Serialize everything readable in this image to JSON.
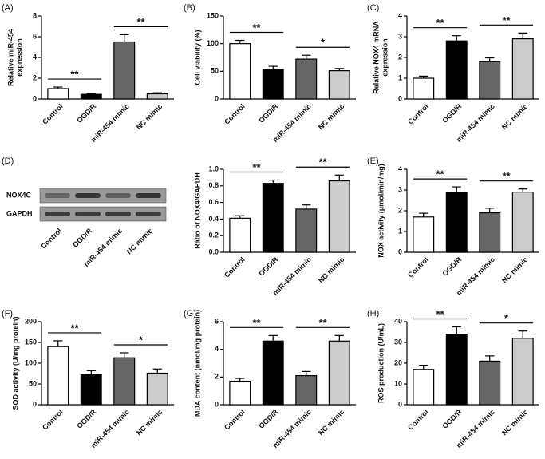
{
  "chart_data": [
    {
      "type": "bar",
      "panel": "(A)",
      "ylabel": [
        "Relative miR-454",
        "expression"
      ],
      "categories": [
        "Control",
        "OGD/R",
        "miR-454 mimic",
        "NC mimic"
      ],
      "values": [
        1.0,
        0.45,
        5.5,
        0.5
      ],
      "errors": [
        0.15,
        0.08,
        0.7,
        0.1
      ],
      "colors": [
        "#ffffff",
        "#000000",
        "#666666",
        "#cccccc"
      ],
      "ylim": [
        0,
        8
      ],
      "yticks": [
        0,
        2,
        4,
        6,
        8
      ],
      "annotations": [
        "**",
        "**"
      ]
    },
    {
      "type": "bar",
      "panel": "(B)",
      "ylabel": "Cell viability (%)",
      "categories": [
        "Control",
        "OGD/R",
        "miR-454 mimic",
        "NC mimic"
      ],
      "values": [
        100,
        53,
        72,
        51
      ],
      "errors": [
        6,
        6,
        7,
        4
      ],
      "colors": [
        "#ffffff",
        "#000000",
        "#666666",
        "#cccccc"
      ],
      "ylim": [
        0,
        150
      ],
      "yticks": [
        0,
        50,
        100,
        150
      ],
      "annotations": [
        "**",
        "*"
      ]
    },
    {
      "type": "bar",
      "panel": "(C)",
      "ylabel": [
        "Relative NOX4 mRNA",
        "expression"
      ],
      "categories": [
        "Control",
        "OGD/R",
        "miR-454 mimic",
        "NC mimic"
      ],
      "values": [
        1.0,
        2.8,
        1.8,
        2.9
      ],
      "errors": [
        0.1,
        0.25,
        0.18,
        0.28
      ],
      "colors": [
        "#ffffff",
        "#000000",
        "#666666",
        "#cccccc"
      ],
      "ylim": [
        0,
        4
      ],
      "yticks": [
        0,
        1,
        2,
        3,
        4
      ],
      "annotations": [
        "**",
        "**"
      ]
    },
    {
      "type": "bar",
      "panel": "(D)",
      "blot_rows": [
        "NOX4C",
        "GAPDH"
      ],
      "ylabel": "Ratio of NOX4/GAPDH",
      "categories": [
        "Control",
        "OGD/R",
        "miR-454 mimic",
        "NC mimic"
      ],
      "values": [
        0.41,
        0.83,
        0.52,
        0.86
      ],
      "errors": [
        0.03,
        0.04,
        0.05,
        0.07
      ],
      "colors": [
        "#ffffff",
        "#000000",
        "#666666",
        "#cccccc"
      ],
      "ylim": [
        0,
        1
      ],
      "yticks": [
        {
          "value": 0,
          "label": "0.0"
        },
        0.2,
        0.4,
        0.6,
        0.8,
        {
          "value": 1,
          "label": "1.0"
        }
      ],
      "annotations": [
        "**",
        "**"
      ]
    },
    {
      "type": "bar",
      "panel": "(E)",
      "ylabel": "NOX activity (μmol/min/mg)",
      "categories": [
        "Control",
        "OGD/R",
        "miR-454 mimic",
        "NC mimic"
      ],
      "values": [
        1.7,
        2.9,
        1.9,
        2.9
      ],
      "errors": [
        0.18,
        0.25,
        0.22,
        0.15
      ],
      "colors": [
        "#ffffff",
        "#000000",
        "#666666",
        "#cccccc"
      ],
      "ylim": [
        0,
        4
      ],
      "yticks": [
        0,
        1,
        2,
        3,
        4
      ],
      "annotations": [
        "**",
        "**"
      ]
    },
    {
      "type": "bar",
      "panel": "(F)",
      "ylabel": "SOD activity (U/mg protein)",
      "categories": [
        "Control",
        "OGD/R",
        "miR-454 mimic",
        "NC mimic"
      ],
      "values": [
        140,
        72,
        113,
        76
      ],
      "errors": [
        14,
        10,
        12,
        10
      ],
      "colors": [
        "#ffffff",
        "#000000",
        "#666666",
        "#cccccc"
      ],
      "ylim": [
        0,
        200
      ],
      "yticks": [
        0,
        50,
        100,
        150,
        200
      ],
      "annotations": [
        "**",
        "*"
      ]
    },
    {
      "type": "bar",
      "panel": "(G)",
      "ylabel": "MDA content (nmol/mg protein)",
      "categories": [
        "Control",
        "OGD/R",
        "miR-454 mimic",
        "NC mimic"
      ],
      "values": [
        1.7,
        4.6,
        2.1,
        4.6
      ],
      "errors": [
        0.2,
        0.4,
        0.3,
        0.4
      ],
      "colors": [
        "#ffffff",
        "#000000",
        "#666666",
        "#cccccc"
      ],
      "ylim": [
        0,
        6
      ],
      "yticks": [
        0,
        2,
        4,
        6
      ],
      "annotations": [
        "**",
        "**"
      ]
    },
    {
      "type": "bar",
      "panel": "(H)",
      "ylabel": "ROS production (U/mL)",
      "categories": [
        "Control",
        "OGD/R",
        "miR-454 mimic",
        "NC mimic"
      ],
      "values": [
        17,
        34,
        21,
        32
      ],
      "errors": [
        2,
        3.5,
        2.5,
        3.5
      ],
      "colors": [
        "#ffffff",
        "#000000",
        "#666666",
        "#cccccc"
      ],
      "ylim": [
        0,
        40
      ],
      "yticks": [
        0,
        10,
        20,
        30,
        40
      ],
      "annotations": [
        "**",
        "*"
      ]
    }
  ]
}
